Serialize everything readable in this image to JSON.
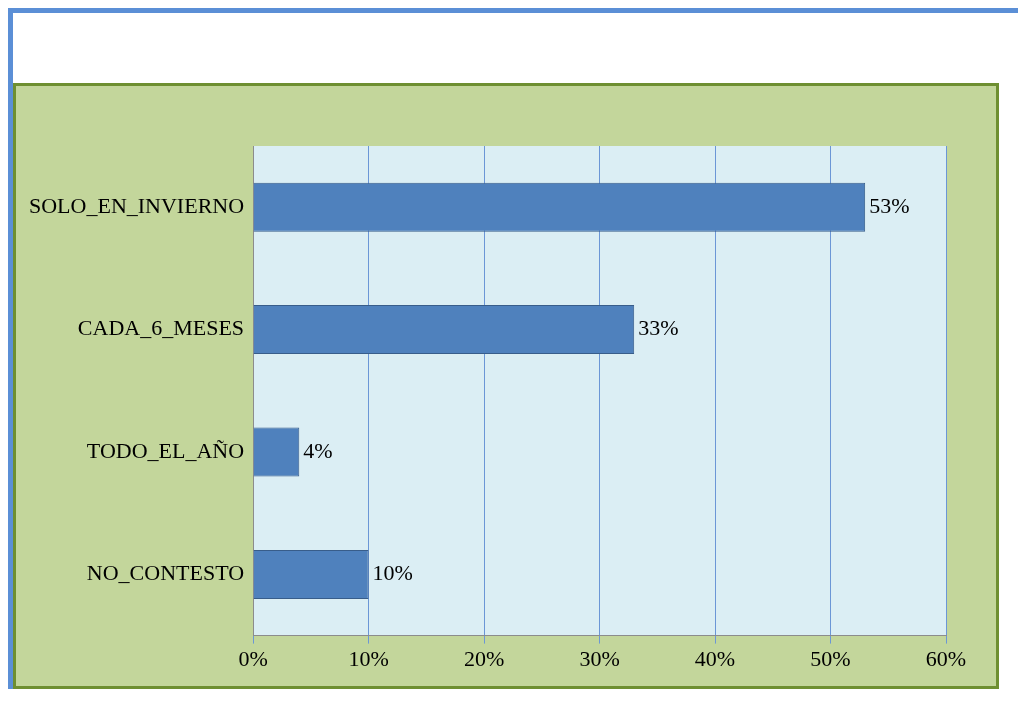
{
  "chart_data": {
    "type": "bar",
    "orientation": "horizontal",
    "categories": [
      "SOLO_EN_INVIERNO",
      "CADA_6_MESES",
      "TODO_EL_AÑO",
      "NO_CONTESTO"
    ],
    "values": [
      53,
      33,
      4,
      10
    ],
    "color": "#4f81bd",
    "value_labels": [
      "53%",
      "33%",
      "4%",
      "10%"
    ],
    "xlim": [
      0,
      60
    ],
    "xticks": [
      {
        "value": 0,
        "label": "0%"
      },
      {
        "value": 10,
        "label": "10%"
      },
      {
        "value": 20,
        "label": "20%"
      },
      {
        "value": 30,
        "label": "30%"
      },
      {
        "value": 40,
        "label": "40%"
      },
      {
        "value": 50,
        "label": "50%"
      },
      {
        "value": 60,
        "label": "60%"
      }
    ],
    "grid": "x",
    "legend": false
  }
}
